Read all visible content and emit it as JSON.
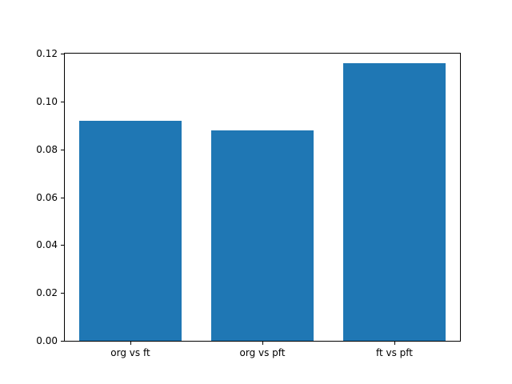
{
  "chart_data": {
    "type": "bar",
    "categories": [
      "org vs ft",
      "org vs pft",
      "ft vs pft"
    ],
    "values": [
      0.092,
      0.088,
      0.116
    ],
    "title": "",
    "xlabel": "",
    "ylabel": "",
    "ylim": [
      0.0,
      0.12
    ],
    "yticks": [
      "0.00",
      "0.02",
      "0.04",
      "0.06",
      "0.08",
      "0.10",
      "0.12"
    ],
    "ytick_values": [
      0.0,
      0.02,
      0.04,
      0.06,
      0.08,
      0.1,
      0.12
    ],
    "bar_color": "#1f77b4",
    "grid": false,
    "legend": false
  }
}
